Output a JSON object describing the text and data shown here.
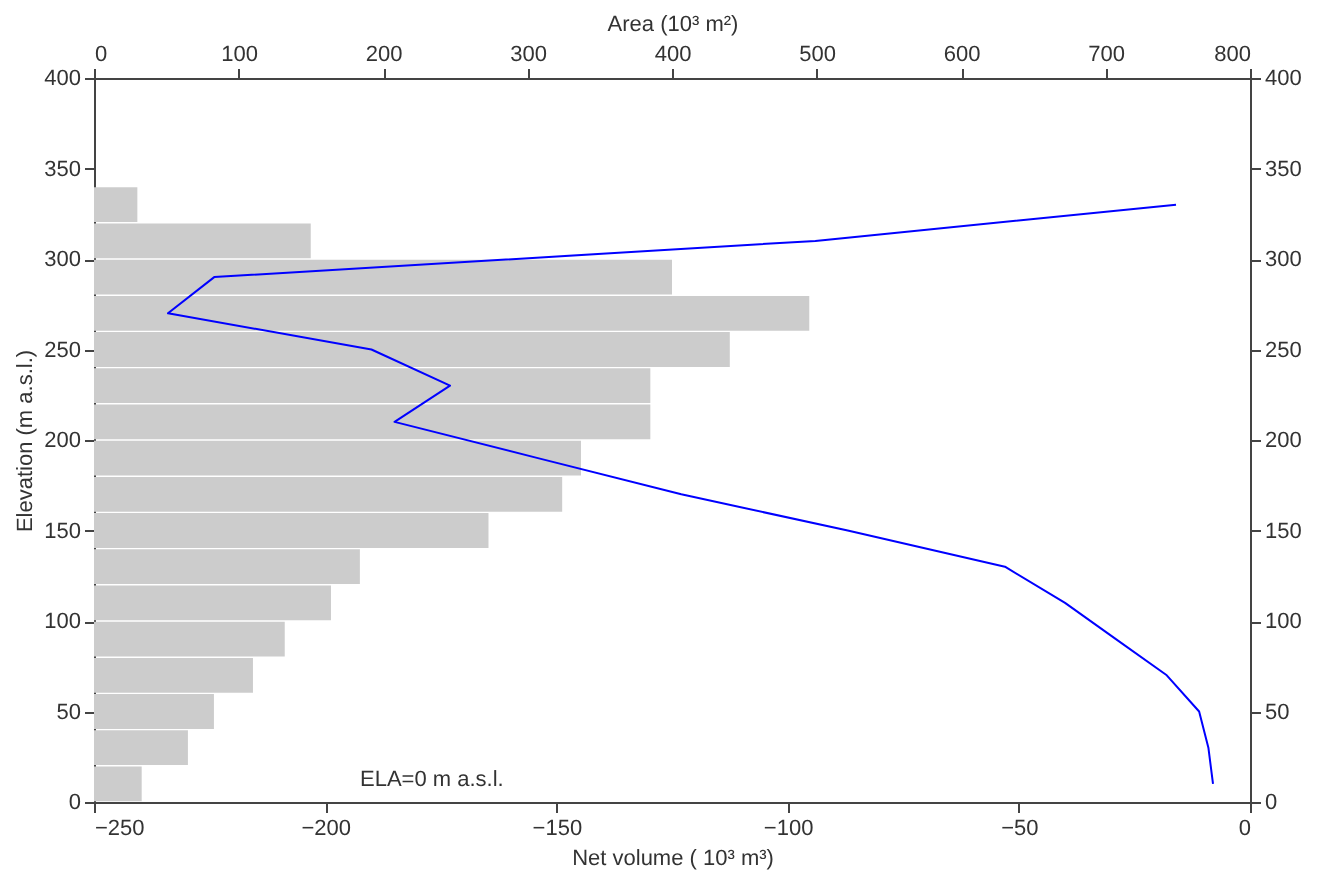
{
  "chart_data": {
    "type": "bar",
    "orientation": "horizontal",
    "xlabel": "Net volume ( 10³ m³)",
    "x2label": "Area (10³ m²)",
    "ylabel": "Elevation (m a.s.l.)",
    "xlim": [
      -250,
      0
    ],
    "xticks": [
      -250,
      -200,
      -150,
      -100,
      -50,
      0
    ],
    "x2lim": [
      0,
      800
    ],
    "x2ticks": [
      0,
      100,
      200,
      300,
      400,
      500,
      600,
      700,
      800
    ],
    "ylim": [
      0,
      400
    ],
    "yticks": [
      0,
      50,
      100,
      150,
      200,
      250,
      300,
      350,
      400
    ],
    "y2lim": [
      0,
      400
    ],
    "y2ticks": [
      0,
      50,
      100,
      150,
      200,
      250,
      300,
      350,
      400
    ],
    "grid": false,
    "annotations": [
      "ELA=0 m a.s.l."
    ],
    "series": [
      {
        "axis": "x2",
        "color": "#cccccc",
        "x": [
          10,
          30,
          50,
          70,
          90,
          110,
          130,
          150,
          170,
          190,
          210,
          230,
          250,
          270,
          290,
          310,
          330
        ],
        "values": [
          33,
          65,
          83,
          110,
          132,
          164,
          184,
          273,
          324,
          337,
          385,
          385,
          440,
          495,
          400,
          150,
          30
        ]
      },
      {
        "type": "line",
        "color": "#0000ff",
        "x": [
          330,
          310,
          290,
          270,
          250,
          230,
          210,
          190,
          170,
          150,
          130,
          110,
          90,
          70,
          50,
          30,
          10
        ],
        "values": [
          -16,
          -94,
          -224,
          -234,
          -190,
          -173,
          -185,
          -154,
          -123,
          -87,
          -53,
          -40,
          -29,
          -18,
          -11,
          -9,
          -8
        ]
      }
    ]
  }
}
